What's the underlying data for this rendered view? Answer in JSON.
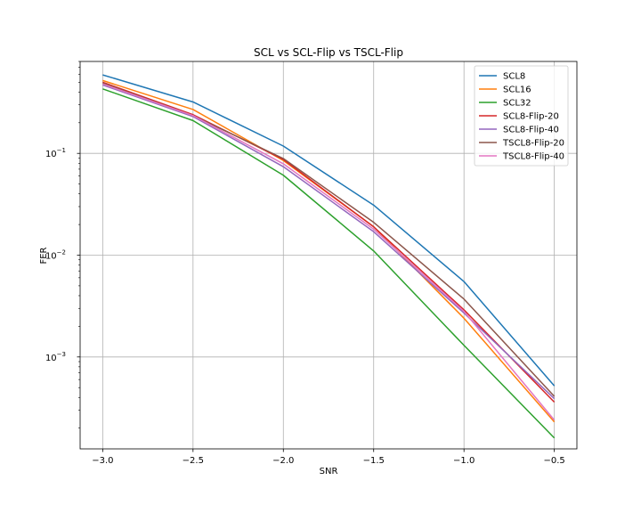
{
  "chart_data": {
    "type": "line",
    "title": "SCL vs SCL-Flip vs TSCL-Flip",
    "xlabel": "SNR",
    "ylabel": "FER",
    "y_scale": "log",
    "xlim": [
      -3.125,
      -0.375
    ],
    "ylim": [
      0.000125,
      0.8
    ],
    "x_ticks": [
      -3.0,
      -2.5,
      -2.0,
      -1.5,
      -1.0,
      -0.5
    ],
    "x_tick_labels": [
      "−3.0",
      "−2.5",
      "−2.0",
      "−1.5",
      "−1.0",
      "−0.5"
    ],
    "y_ticks": [
      0.001,
      0.01,
      0.1
    ],
    "y_tick_labels": [
      {
        "base": "10",
        "exp": "−3"
      },
      {
        "base": "10",
        "exp": "−2"
      },
      {
        "base": "10",
        "exp": "−1"
      }
    ],
    "grid": true,
    "legend_position": "top-right",
    "x": [
      -3.0,
      -2.5,
      -2.0,
      -1.5,
      -1.0,
      -0.5
    ],
    "series": [
      {
        "name": "SCL8",
        "color": "#1f77b4",
        "values": [
          0.59,
          0.32,
          0.118,
          0.031,
          0.0055,
          0.00052
        ]
      },
      {
        "name": "SCL16",
        "color": "#ff7f0e",
        "values": [
          0.52,
          0.27,
          0.085,
          0.019,
          0.0024,
          0.00023
        ]
      },
      {
        "name": "SCL32",
        "color": "#2ca02c",
        "values": [
          0.43,
          0.21,
          0.061,
          0.011,
          0.0013,
          0.00016
        ]
      },
      {
        "name": "SCL8-Flip-20",
        "color": "#d62728",
        "values": [
          0.5,
          0.24,
          0.087,
          0.019,
          0.0029,
          0.00036
        ]
      },
      {
        "name": "SCL8-Flip-40",
        "color": "#9467bd",
        "values": [
          0.47,
          0.23,
          0.074,
          0.017,
          0.0027,
          0.00039
        ]
      },
      {
        "name": "TSCL8-Flip-20",
        "color": "#8c564b",
        "values": [
          0.49,
          0.235,
          0.089,
          0.021,
          0.0037,
          0.00041
        ]
      },
      {
        "name": "TSCL8-Flip-40",
        "color": "#e377c2",
        "values": [
          0.48,
          0.235,
          0.079,
          0.018,
          0.0028,
          0.00024
        ]
      }
    ]
  }
}
